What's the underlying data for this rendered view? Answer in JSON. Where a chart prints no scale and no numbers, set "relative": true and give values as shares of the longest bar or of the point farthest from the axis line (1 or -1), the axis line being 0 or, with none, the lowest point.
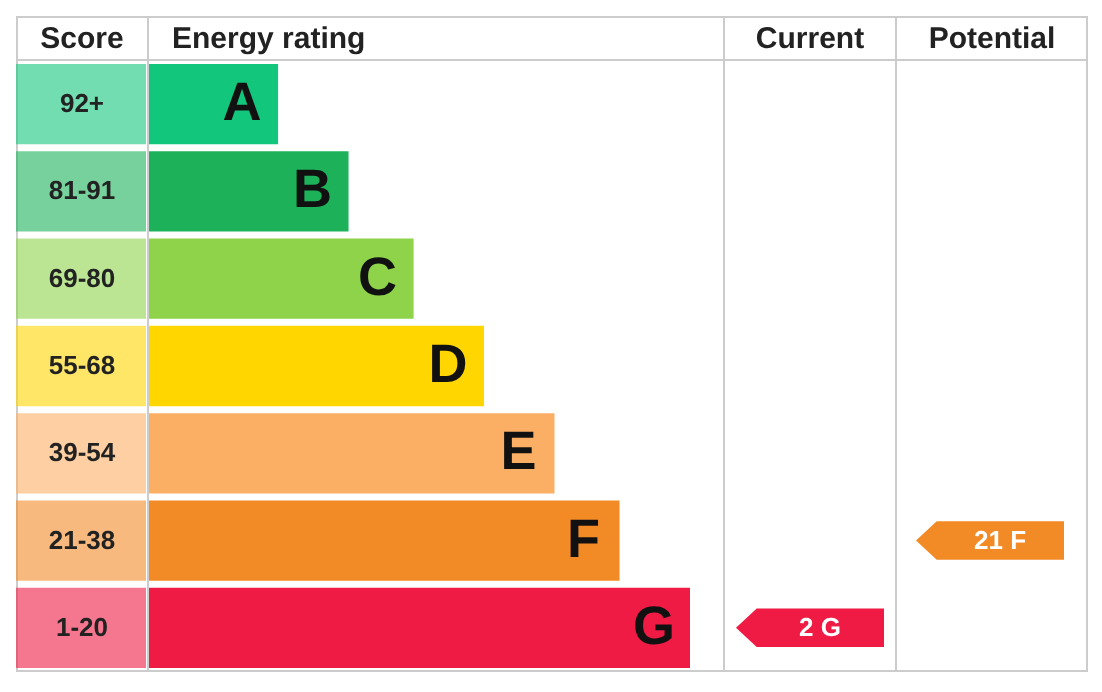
{
  "chart_data": {
    "type": "bar",
    "orientation": "horizontal",
    "relative": true,
    "categories": [
      "A",
      "B",
      "C",
      "D",
      "E",
      "F",
      "G"
    ],
    "values": [
      0.24,
      0.37,
      0.49,
      0.62,
      0.75,
      0.87,
      1
    ],
    "colors": [
      "#12c77c",
      "#1db25a",
      "#8ed34a",
      "#ffd600",
      "#fbaf64",
      "#f28a26",
      "#ef1b44"
    ],
    "annotations": [
      "Score",
      "Energy rating",
      "Current",
      "Potential",
      "92+",
      "81-91",
      "69-80",
      "55-68",
      "39-54",
      "21-38",
      "1-20",
      "2 G",
      "21 F"
    ]
  }
}
